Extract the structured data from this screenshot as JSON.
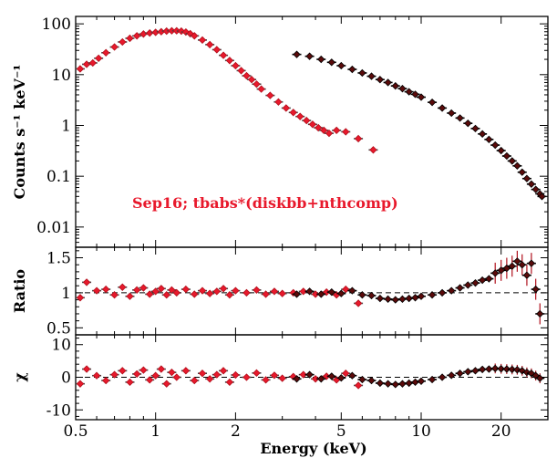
{
  "chart_data": {
    "type": "scatter",
    "annotation": "Sep16; tbabs*(diskbb+nthcomp)",
    "xlabel": "Energy (keV)",
    "x_scale": "log",
    "xlim": [
      0.5,
      30
    ],
    "x_tick_labels": [
      "0.5",
      "1",
      "2",
      "5",
      "10",
      "20"
    ],
    "x_tick_values": [
      0.5,
      1,
      2,
      5,
      10,
      20
    ],
    "colors": {
      "soft_instrument": "#e8192c",
      "hard_instrument": "#5a0a0a",
      "model": "#555555"
    },
    "panels": [
      {
        "name": "spectrum",
        "ylabel": "Counts s⁻¹ keV⁻¹",
        "y_scale": "log",
        "ylim": [
          0.004,
          140
        ],
        "y_tick_labels": [
          "100",
          "10",
          "1",
          "0.1",
          "0.01"
        ],
        "y_tick_values": [
          100,
          10,
          1,
          0.1,
          0.01
        ],
        "series": [
          {
            "color": "#e8192c",
            "x": [
              0.52,
              0.55,
              0.58,
              0.61,
              0.65,
              0.7,
              0.75,
              0.8,
              0.85,
              0.9,
              0.95,
              1.0,
              1.05,
              1.1,
              1.15,
              1.2,
              1.25,
              1.3,
              1.35,
              1.4,
              1.5,
              1.6,
              1.7,
              1.8,
              1.9,
              2.0,
              2.1,
              2.2,
              2.3,
              2.4,
              2.5,
              2.7,
              2.9,
              3.1,
              3.3,
              3.5,
              3.7,
              3.9,
              4.1,
              4.3,
              4.5,
              4.8,
              5.2,
              5.8,
              6.6
            ],
            "y": [
              13,
              16,
              17,
              21,
              27,
              35,
              44,
              52,
              58,
              63,
              66,
              68,
              70,
              72,
              73,
              73,
              72,
              69,
              64,
              58,
              48,
              39,
              31,
              24,
              19,
              15,
              12,
              9.5,
              8,
              6.5,
              5.2,
              3.9,
              2.9,
              2.2,
              1.8,
              1.5,
              1.25,
              1.05,
              0.9,
              0.8,
              0.7,
              0.8,
              0.75,
              0.55,
              0.33
            ]
          },
          {
            "color": "#5a0a0a",
            "x": [
              3.4,
              3.8,
              4.2,
              4.6,
              5.0,
              5.5,
              6.0,
              6.5,
              7.0,
              7.5,
              8.0,
              8.5,
              9.0,
              9.5,
              10,
              11,
              12,
              13,
              14,
              15,
              16,
              17,
              18,
              19,
              20,
              21,
              22,
              23,
              24,
              25,
              26,
              27,
              28,
              28.5
            ],
            "y": [
              25,
              23,
              20,
              17.5,
              15,
              12.7,
              10.8,
              9.3,
              8,
              7,
              6,
              5.3,
              4.6,
              4.1,
              3.6,
              2.85,
              2.2,
              1.75,
              1.4,
              1.1,
              0.87,
              0.68,
              0.53,
              0.41,
              0.32,
              0.25,
              0.2,
              0.16,
              0.12,
              0.09,
              0.07,
              0.055,
              0.045,
              0.04
            ]
          }
        ]
      },
      {
        "name": "ratio",
        "ylabel": "Ratio",
        "y_scale": "linear",
        "ylim": [
          0.4,
          1.65
        ],
        "y_tick_labels": [
          "1.5",
          "1",
          "0.5"
        ],
        "y_tick_values": [
          1.5,
          1,
          0.5
        ],
        "reference_line": 1,
        "series": [
          {
            "color": "#e8192c",
            "x": [
              0.52,
              0.55,
              0.6,
              0.65,
              0.7,
              0.75,
              0.8,
              0.85,
              0.9,
              0.95,
              1.0,
              1.05,
              1.1,
              1.15,
              1.2,
              1.3,
              1.4,
              1.5,
              1.6,
              1.7,
              1.8,
              1.9,
              2.0,
              2.2,
              2.4,
              2.6,
              2.8,
              3.0,
              3.3,
              3.6,
              4.0,
              4.4,
              4.8,
              5.2,
              5.8
            ],
            "y": [
              0.93,
              1.15,
              1.03,
              1.05,
              0.97,
              1.08,
              0.95,
              1.04,
              1.07,
              0.98,
              1.02,
              1.06,
              0.97,
              1.04,
              1.0,
              1.05,
              0.98,
              1.03,
              0.99,
              1.02,
              1.06,
              0.97,
              1.03,
              1.0,
              1.04,
              0.98,
              1.02,
              0.99,
              1.0,
              1.02,
              0.98,
              1.01,
              0.97,
              1.05,
              0.85
            ]
          },
          {
            "color": "#5a0a0a",
            "x": [
              3.4,
              3.8,
              4.2,
              4.6,
              5.0,
              5.5,
              6.0,
              6.5,
              7.0,
              7.5,
              8.0,
              8.5,
              9.0,
              9.5,
              10,
              11,
              12,
              13,
              14,
              15,
              16,
              17,
              18,
              19,
              20,
              21,
              22,
              23,
              24,
              25,
              26,
              27,
              28
            ],
            "y": [
              0.98,
              1.02,
              0.98,
              1.01,
              0.99,
              1.03,
              0.97,
              0.96,
              0.92,
              0.91,
              0.9,
              0.91,
              0.92,
              0.93,
              0.95,
              0.97,
              1.0,
              1.03,
              1.07,
              1.11,
              1.14,
              1.18,
              1.2,
              1.28,
              1.32,
              1.35,
              1.38,
              1.45,
              1.4,
              1.25,
              1.42,
              1.05,
              0.7
            ]
          }
        ]
      },
      {
        "name": "residuals",
        "ylabel": "χ",
        "y_scale": "linear",
        "ylim": [
          -13,
          13
        ],
        "y_tick_labels": [
          "10",
          "0",
          "-10"
        ],
        "y_tick_values": [
          10,
          0,
          -10
        ],
        "reference_line": 0,
        "series": [
          {
            "color": "#e8192c",
            "x": [
              0.52,
              0.55,
              0.6,
              0.65,
              0.7,
              0.75,
              0.8,
              0.85,
              0.9,
              0.95,
              1.0,
              1.05,
              1.1,
              1.15,
              1.2,
              1.3,
              1.4,
              1.5,
              1.6,
              1.7,
              1.8,
              1.9,
              2.0,
              2.2,
              2.4,
              2.6,
              2.8,
              3.0,
              3.3,
              3.6,
              4.0,
              4.4,
              4.8,
              5.2,
              5.8
            ],
            "y": [
              -2,
              2.5,
              0.5,
              -1,
              0.8,
              2,
              -1.5,
              1,
              2.2,
              -0.8,
              0.5,
              2.5,
              -2,
              1.5,
              0,
              2,
              -1,
              1.2,
              -0.5,
              0.8,
              2,
              -1.5,
              0.7,
              0,
              1.3,
              -0.8,
              0.6,
              -0.3,
              0.2,
              0.8,
              -0.5,
              0.3,
              -0.8,
              1.2,
              -2.5
            ]
          },
          {
            "color": "#5a0a0a",
            "x": [
              3.4,
              3.8,
              4.2,
              4.6,
              5.0,
              5.5,
              6.0,
              6.5,
              7.0,
              7.5,
              8.0,
              8.5,
              9.0,
              9.5,
              10,
              11,
              12,
              13,
              14,
              15,
              16,
              17,
              18,
              19,
              20,
              21,
              22,
              23,
              24,
              25,
              26,
              27,
              28
            ],
            "y": [
              -0.5,
              0.8,
              -0.5,
              0.3,
              -0.2,
              0.5,
              -0.7,
              -1.0,
              -1.8,
              -2.0,
              -2.2,
              -2.0,
              -1.8,
              -1.5,
              -1.2,
              -0.7,
              0,
              0.6,
              1.2,
              1.7,
              2.0,
              2.4,
              2.5,
              2.7,
              2.6,
              2.5,
              2.4,
              2.3,
              2.0,
              1.5,
              1.2,
              0.5,
              -0.3
            ]
          }
        ]
      }
    ]
  }
}
